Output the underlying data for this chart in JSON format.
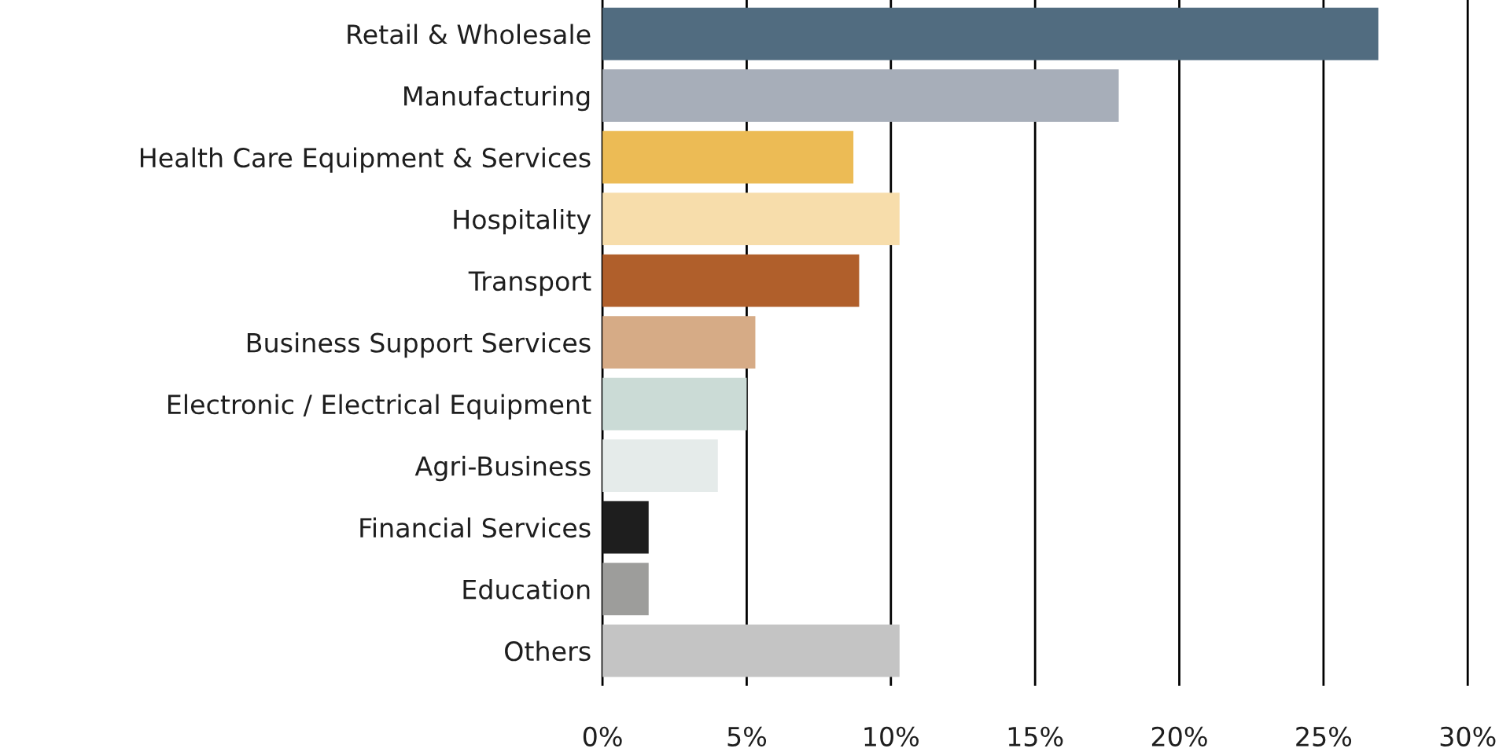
{
  "chart_data": {
    "type": "bar",
    "orientation": "horizontal",
    "categories": [
      "Retail & Wholesale",
      "Manufacturing",
      "Health Care Equipment & Services",
      "Hospitality",
      "Transport",
      "Business Support Services",
      "Electronic / Electrical Equipment",
      "Agri-Business",
      "Financial Services",
      "Education",
      "Others"
    ],
    "values": [
      26.9,
      17.9,
      8.7,
      10.3,
      8.9,
      5.3,
      5.0,
      4.0,
      1.6,
      1.6,
      10.3
    ],
    "colors": [
      "#516c80",
      "#a7aeb9",
      "#ecbb55",
      "#f7ddab",
      "#b05f2b",
      "#d6ab86",
      "#cbdbd6",
      "#e5ebea",
      "#1e1e1e",
      "#9d9d9b",
      "#c4c4c4"
    ],
    "xlim": [
      0,
      30
    ],
    "xticks": [
      {
        "value": 0,
        "label": "0%"
      },
      {
        "value": 5,
        "label": "5%"
      },
      {
        "value": 10,
        "label": "10%"
      },
      {
        "value": 15,
        "label": "15%"
      },
      {
        "value": 20,
        "label": "20%"
      },
      {
        "value": 25,
        "label": "25%"
      },
      {
        "value": 30,
        "label": "30%"
      }
    ],
    "grid": "x"
  }
}
